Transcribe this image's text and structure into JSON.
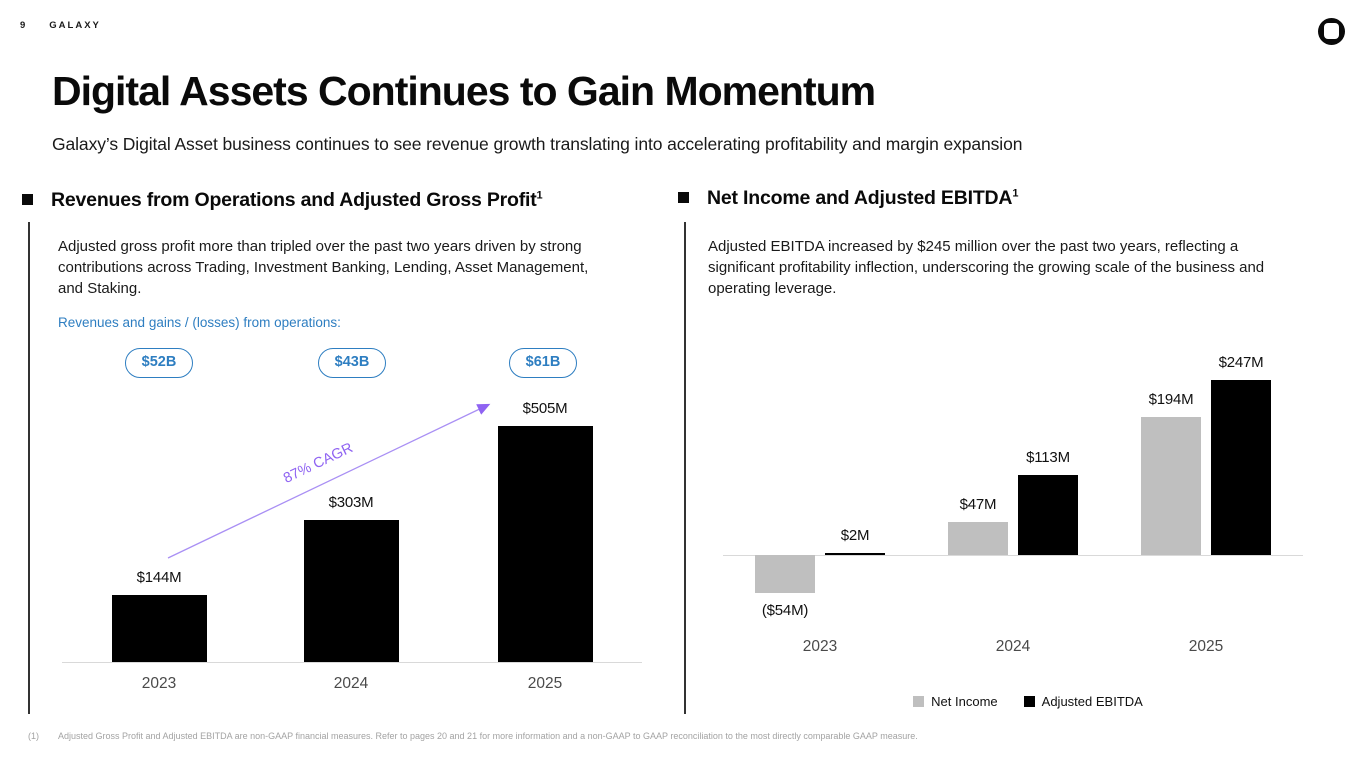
{
  "header": {
    "page_number": "9",
    "brand": "GALAXY"
  },
  "title": "Digital Assets Continues to Gain Momentum",
  "subtitle": "Galaxy’s Digital Asset business continues to see revenue growth translating into accelerating profitability and margin expansion",
  "left_section": {
    "heading": "Revenues from Operations and Adjusted Gross Profit",
    "heading_superscript": "1",
    "body": "Adjusted gross profit more than tripled over the past two years driven by strong contributions across Trading, Investment Banking, Lending, Asset Management, and Staking.",
    "revenue_label": "Revenues and gains / (losses) from operations:",
    "revenue_pills": [
      "$52B",
      "$43B",
      "$61B"
    ],
    "cagr_label": "87% CAGR"
  },
  "right_section": {
    "heading": "Net Income and Adjusted EBITDA",
    "heading_superscript": "1",
    "body": "Adjusted EBITDA increased by $245 million over the past two years, reflecting a significant profitability inflection, underscoring the growing scale of the business and operating leverage.",
    "legend": [
      {
        "label": "Net Income",
        "color": "#BFBFBF"
      },
      {
        "label": "Adjusted EBITDA",
        "color": "#000000"
      }
    ]
  },
  "chart_data": [
    {
      "type": "bar",
      "title": "Revenues from Operations and Adjusted Gross Profit",
      "categories": [
        "2023",
        "2024",
        "2025"
      ],
      "values": [
        144,
        303,
        505
      ],
      "labels": [
        "$144M",
        "$303M",
        "$505M"
      ],
      "unit": "USD millions",
      "ylim": [
        0,
        550
      ],
      "grid": false,
      "annotations": {
        "cagr": "87% CAGR",
        "revenue_pills_per_year": [
          "$52B",
          "$43B",
          "$61B"
        ]
      }
    },
    {
      "type": "bar",
      "title": "Net Income and Adjusted EBITDA",
      "categories": [
        "2023",
        "2024",
        "2025"
      ],
      "series": [
        {
          "name": "Net Income",
          "values": [
            -54,
            47,
            194
          ],
          "labels": [
            "($54M)",
            "$47M",
            "$194M"
          ],
          "color": "#BFBFBF"
        },
        {
          "name": "Adjusted EBITDA",
          "values": [
            2,
            113,
            247
          ],
          "labels": [
            "$2M",
            "$113M",
            "$247M"
          ],
          "color": "#000000"
        }
      ],
      "unit": "USD millions",
      "ylim": [
        -80,
        290
      ],
      "grid": false,
      "legend_position": "bottom"
    }
  ],
  "footnote": {
    "marker": "(1)",
    "text": "Adjusted Gross Profit and Adjusted EBITDA are non-GAAP financial measures. Refer to pages 20 and 21 for more information and a non-GAAP to GAAP reconciliation to the most directly comparable GAAP measure."
  },
  "colors": {
    "accent_blue": "#2E7EC1",
    "accent_purple": "#8F63F2",
    "bar_black": "#000000",
    "bar_gray": "#BFBFBF",
    "axis_gray": "#D9D9D9"
  }
}
